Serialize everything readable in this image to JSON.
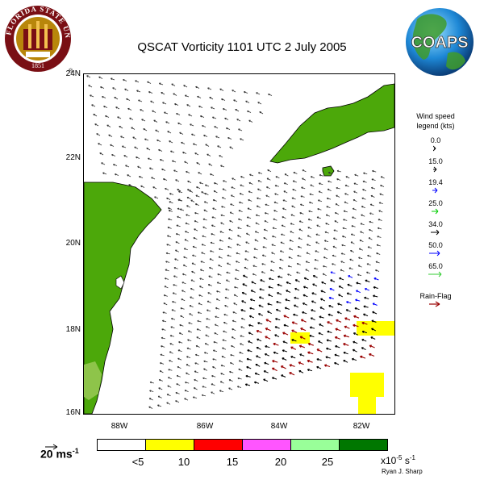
{
  "title": "QSCAT Vorticity 1101 UTC 2 July 2005",
  "map": {
    "lat_labels": [
      "24N",
      "22N",
      "20N",
      "18N",
      "16N"
    ],
    "lon_labels": [
      "88W",
      "86W",
      "84W",
      "82W"
    ],
    "land_color": "#4ca80a",
    "highlight_color": "#ffff00"
  },
  "legend": {
    "title_line1": "Wind speed",
    "title_line2": "legend (kts)",
    "items": [
      {
        "value": "0.0",
        "color": "#000000"
      },
      {
        "value": "15.0",
        "color": "#000000"
      },
      {
        "value": "19.4",
        "color": "#0000ff"
      },
      {
        "value": "25.0",
        "color": "#00cc00"
      },
      {
        "value": "34.0",
        "color": "#000000"
      },
      {
        "value": "50.0",
        "color": "#0000ff"
      },
      {
        "value": "65.0",
        "color": "#33cc33"
      }
    ],
    "rain_flag_label": "Rain-Flag",
    "rain_flag_color": "#990000"
  },
  "colorbar": {
    "colors": [
      "#ffffff",
      "#ffff00",
      "#ff0000",
      "#ff55ff",
      "#99ff99",
      "#007700"
    ],
    "labels": [
      "<5",
      "10",
      "15",
      "20",
      "25"
    ],
    "unit_base": "x10",
    "unit_exp": "-5",
    "unit_tail": " s",
    "unit_tail_exp": "-1"
  },
  "reference": {
    "label": "20 ms",
    "exp": "-1"
  },
  "credit": "Ryan J. Sharp",
  "logos": {
    "fsu_text": "FLORIDA STATE UNIVERSITY",
    "fsu_year": "1851",
    "coaps_text": "COAPS"
  }
}
